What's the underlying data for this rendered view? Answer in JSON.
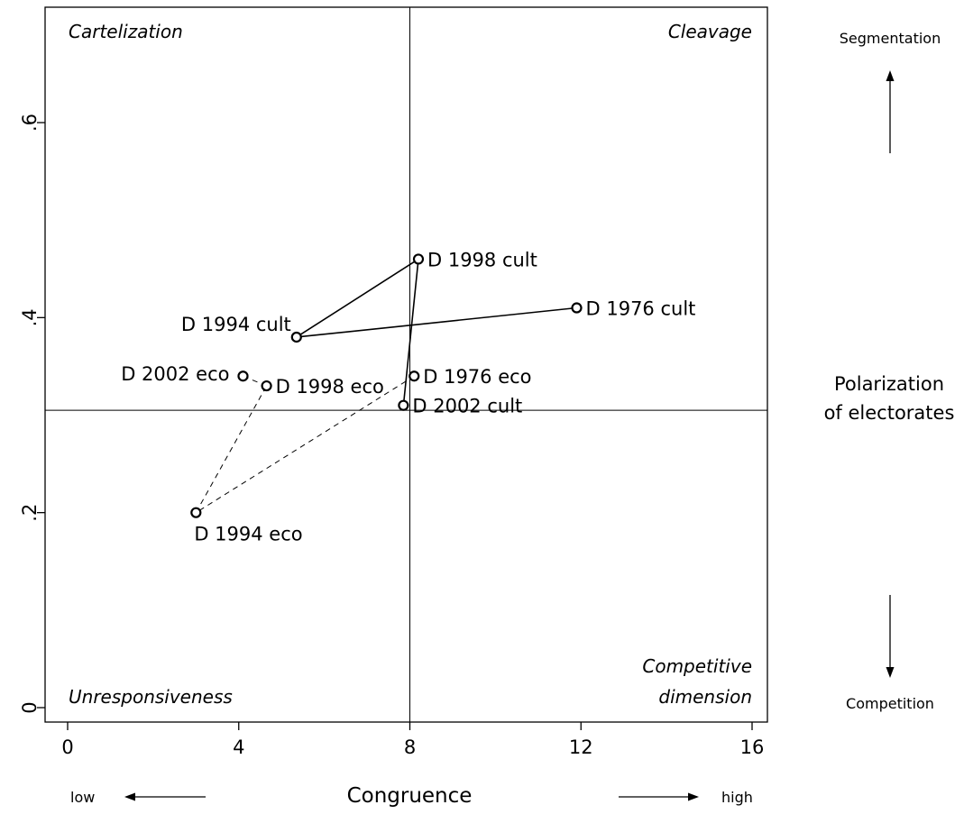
{
  "chart_data": {
    "type": "scatter",
    "title": "",
    "xlabel": "Congruence",
    "ylabel": "",
    "xlim": [
      -0.6,
      16.4
    ],
    "ylim": [
      -0.02,
      0.7
    ],
    "x_ticks": [
      0,
      4,
      8,
      12,
      16
    ],
    "x_tick_labels": [
      "0",
      "4",
      "8",
      "12",
      "16"
    ],
    "y_ticks": [
      0,
      0.2,
      0.4,
      0.6
    ],
    "y_tick_labels": [
      "0",
      ".2",
      ".4",
      ".6"
    ],
    "reference_lines": {
      "x": 8,
      "y": 0.305
    },
    "grid": false,
    "quadrant_labels": {
      "top_left": "Cartelization",
      "top_right": "Cleavage",
      "bottom_left": "Unresponsiveness",
      "bottom_right_line1": "Competitive",
      "bottom_right_line2": "dimension"
    },
    "right_annotations": {
      "top": "Segmentation",
      "middle_line1": "Polarization",
      "middle_line2": "of electorates",
      "bottom": "Competition"
    },
    "bottom_annotations": {
      "left": "low",
      "right": "high"
    },
    "points": [
      {
        "label": "D 1976 cult",
        "x": 11.9,
        "y": 0.41,
        "group": "cult",
        "label_pos": "right"
      },
      {
        "label": "D 1994 cult",
        "x": 5.35,
        "y": 0.38,
        "group": "cult",
        "label_pos": "upper-left"
      },
      {
        "label": "D 1998 cult",
        "x": 8.2,
        "y": 0.46,
        "group": "cult",
        "label_pos": "right"
      },
      {
        "label": "D 2002 cult",
        "x": 7.85,
        "y": 0.31,
        "group": "cult",
        "label_pos": "right"
      },
      {
        "label": "D 1976 eco",
        "x": 8.1,
        "y": 0.34,
        "group": "eco",
        "label_pos": "right"
      },
      {
        "label": "D 1994 eco",
        "x": 3.0,
        "y": 0.2,
        "group": "eco",
        "label_pos": "below"
      },
      {
        "label": "D 1998 eco",
        "x": 4.65,
        "y": 0.33,
        "group": "eco",
        "label_pos": "right"
      },
      {
        "label": "D 2002 eco",
        "x": 4.1,
        "y": 0.34,
        "group": "eco",
        "label_pos": "left"
      }
    ],
    "paths": [
      {
        "group": "cult",
        "style": "solid",
        "sequence": [
          "D 1976 cult",
          "D 1994 cult",
          "D 1998 cult",
          "D 2002 cult"
        ]
      },
      {
        "group": "eco",
        "style": "dashed",
        "sequence": [
          "D 1976 eco",
          "D 1994 eco",
          "D 1998 eco",
          "D 2002 eco"
        ]
      }
    ]
  }
}
